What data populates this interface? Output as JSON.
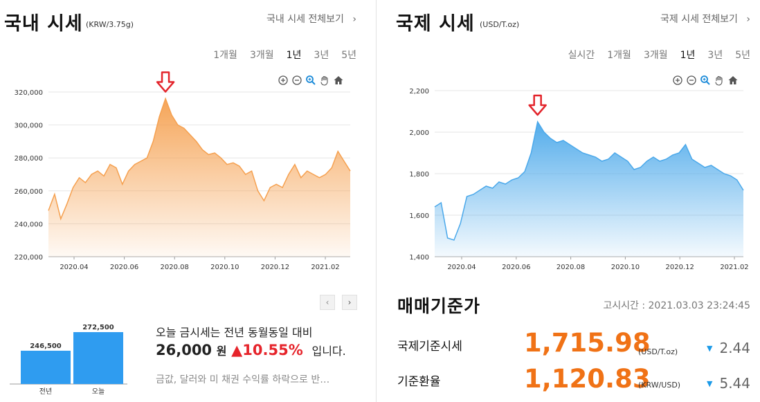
{
  "domestic": {
    "title": "국내 시세",
    "unit": "(KRW/3.75g)",
    "view_all": "국내 시세 전체보기",
    "periods": [
      "1개월",
      "3개월",
      "1년",
      "3년",
      "5년"
    ],
    "active_period": "1년",
    "chart_data": {
      "type": "area",
      "y_ticks": [
        "320,000",
        "300,000",
        "280,000",
        "260,000",
        "240,000",
        "220,000"
      ],
      "x_ticks": [
        "2020.04",
        "2020.06",
        "2020.08",
        "2020.10",
        "2020.12",
        "2021.02"
      ],
      "ylim": [
        220000,
        320000
      ],
      "color": "#f5a04f",
      "peak_marker": "red-down-arrow",
      "series": [
        248000,
        258000,
        243000,
        252000,
        262000,
        268000,
        265000,
        270000,
        272000,
        269000,
        276000,
        274000,
        264000,
        272000,
        276000,
        278000,
        280000,
        290000,
        305000,
        316000,
        306000,
        300000,
        298000,
        294000,
        290000,
        285000,
        282000,
        283000,
        280000,
        276000,
        277000,
        275000,
        270000,
        272000,
        260000,
        254000,
        262000,
        264000,
        262000,
        270000,
        276000,
        268000,
        272000,
        270000,
        268000,
        270000,
        274000,
        284000,
        278000,
        272000
      ]
    },
    "compare": {
      "bars": [
        {
          "label": "전년",
          "value_text": "246,500",
          "value": 246500
        },
        {
          "label": "오늘",
          "value_text": "272,500",
          "value": 272500
        }
      ]
    },
    "message": {
      "line1": "오늘 금시세는 전년 동월동일 대비",
      "amount": "26,000",
      "amount_unit": "원",
      "pct": "▲10.55%",
      "tail": "입니다.",
      "sub": "금값, 달러와 미 채권 수익률 하락으로 반…"
    }
  },
  "international": {
    "title": "국제 시세",
    "unit": "(USD/T.oz)",
    "view_all": "국제 시세 전체보기",
    "periods": [
      "실시간",
      "1개월",
      "3개월",
      "1년",
      "3년",
      "5년"
    ],
    "active_period": "1년",
    "chart_data": {
      "type": "area",
      "y_ticks": [
        "2,200",
        "2,000",
        "1,800",
        "1,600",
        "1,400"
      ],
      "x_ticks": [
        "2020.04",
        "2020.06",
        "2020.08",
        "2020.10",
        "2020.12",
        "2021.02"
      ],
      "ylim": [
        1400,
        2200
      ],
      "color": "#4aa8ea",
      "peak_marker": "red-down-arrow",
      "series": [
        1640,
        1660,
        1490,
        1480,
        1560,
        1690,
        1700,
        1720,
        1740,
        1730,
        1760,
        1750,
        1770,
        1780,
        1810,
        1900,
        2050,
        2000,
        1970,
        1950,
        1960,
        1940,
        1920,
        1900,
        1890,
        1880,
        1860,
        1870,
        1900,
        1880,
        1860,
        1820,
        1830,
        1860,
        1880,
        1860,
        1870,
        1890,
        1900,
        1940,
        1870,
        1850,
        1830,
        1840,
        1820,
        1800,
        1790,
        1770,
        1720
      ]
    },
    "trade": {
      "title": "매매기준가",
      "announce": "고시시간 : 2021.03.03 23:24:45",
      "rows": [
        {
          "label": "국제기준시세",
          "value": "1,715.98",
          "unit": "(USD/T.oz)",
          "change": "2.44"
        },
        {
          "label": "기준환율",
          "value": "1,120.83",
          "unit": "(KRW/USD)",
          "change": "5.44"
        }
      ]
    }
  }
}
